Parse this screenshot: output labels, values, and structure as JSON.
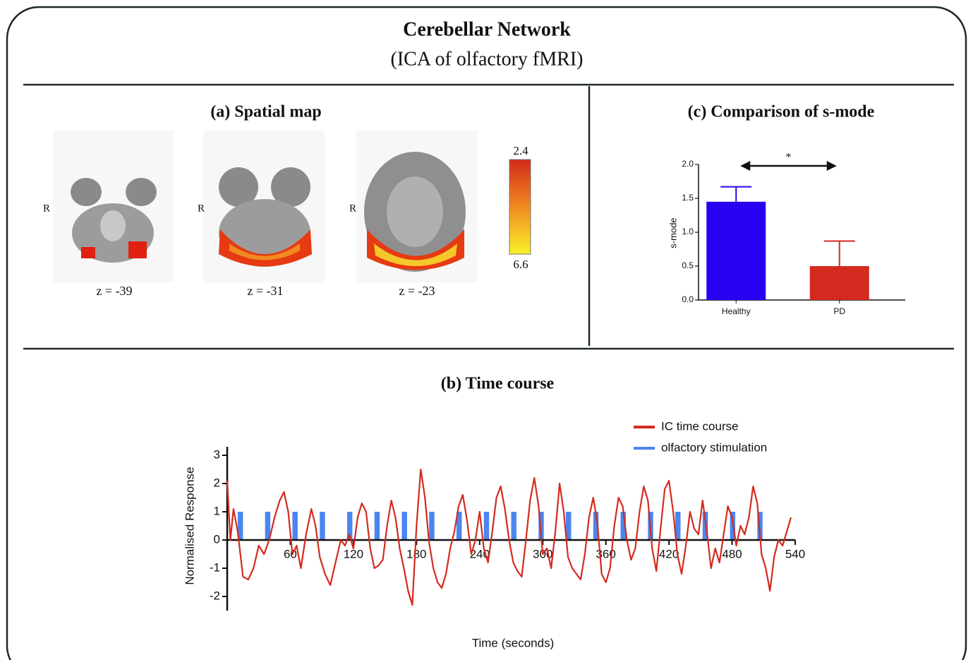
{
  "header": {
    "title": "Cerebellar Network",
    "subtitle": "(ICA of olfactory fMRI)"
  },
  "spatial_map": {
    "title": "(a) Spatial map",
    "slices": [
      {
        "side": "R",
        "label": "z = -39"
      },
      {
        "side": "R",
        "label": "z = -31"
      },
      {
        "side": "R",
        "label": "z = -23"
      }
    ],
    "colorbar": {
      "top": 2.4,
      "bottom": 6.6
    }
  },
  "chart_data": [
    {
      "type": "bar",
      "title": "(c) Comparison of s-mode",
      "y_label": "s-mode",
      "annotation": "*",
      "categories": [
        "Healthy",
        "PD"
      ],
      "values": [
        1.45,
        0.5
      ],
      "errors": [
        0.22,
        0.37
      ],
      "colors": [
        "#2a00f0",
        "#d42a1f"
      ],
      "ylim": [
        0,
        2.0
      ],
      "yticks": [
        {
          "value": 0,
          "label": "0.0"
        },
        0.5,
        {
          "value": 1,
          "label": "1.0"
        },
        1.5,
        {
          "value": 2,
          "label": "2.0"
        }
      ]
    },
    {
      "type": "line",
      "title": "(b) Time course",
      "x_label": "Time (seconds)",
      "y_label": "Normalised Response",
      "xlim": [
        0,
        540
      ],
      "ylim": [
        -2.5,
        3.3
      ],
      "xticks": [
        60,
        120,
        180,
        240,
        300,
        360,
        420,
        480,
        540
      ],
      "yticks": [
        -2,
        -1,
        0,
        1,
        2,
        3
      ],
      "series": [
        {
          "name": "IC time course",
          "color": "#d42a1f",
          "x": [
            0,
            3,
            6,
            10,
            15,
            20,
            25,
            30,
            35,
            40,
            45,
            50,
            54,
            58,
            62,
            66,
            70,
            75,
            80,
            84,
            88,
            93,
            98,
            103,
            108,
            112,
            116,
            120,
            124,
            128,
            132,
            136,
            140,
            144,
            148,
            152,
            156,
            160,
            164,
            168,
            172,
            176,
            180,
            184,
            188,
            192,
            196,
            200,
            204,
            208,
            212,
            216,
            220,
            224,
            228,
            232,
            236,
            240,
            244,
            248,
            252,
            256,
            260,
            264,
            268,
            272,
            276,
            280,
            284,
            288,
            292,
            296,
            300,
            304,
            308,
            312,
            316,
            320,
            324,
            328,
            332,
            336,
            340,
            344,
            348,
            352,
            356,
            360,
            364,
            368,
            372,
            376,
            380,
            384,
            388,
            392,
            396,
            400,
            404,
            408,
            412,
            416,
            420,
            424,
            428,
            432,
            436,
            440,
            444,
            448,
            452,
            456,
            460,
            464,
            468,
            472,
            476,
            480,
            484,
            488,
            492,
            496,
            500,
            504,
            508,
            512,
            516,
            520,
            524,
            528,
            532,
            536
          ],
          "values": [
            2.1,
            0.0,
            1.1,
            0.3,
            -1.3,
            -1.4,
            -1.0,
            -0.2,
            -0.5,
            0.0,
            0.8,
            1.4,
            1.7,
            1.0,
            -0.5,
            -0.2,
            -1.0,
            0.2,
            1.1,
            0.5,
            -0.6,
            -1.2,
            -1.6,
            -0.8,
            0.0,
            -0.2,
            0.2,
            -0.3,
            0.8,
            1.3,
            1.0,
            -0.3,
            -1.0,
            -0.9,
            -0.7,
            0.5,
            1.4,
            0.8,
            -0.3,
            -1.0,
            -1.8,
            -2.3,
            0.5,
            2.5,
            1.5,
            -0.1,
            -1.0,
            -1.5,
            -1.7,
            -1.2,
            -0.3,
            0.3,
            1.2,
            1.6,
            0.7,
            -0.5,
            0.0,
            1.0,
            -0.3,
            -0.8,
            0.3,
            1.5,
            1.9,
            1.1,
            0.0,
            -0.8,
            -1.1,
            -1.3,
            0.0,
            1.4,
            2.2,
            1.2,
            -0.5,
            -0.3,
            -1.0,
            0.3,
            2.0,
            1.0,
            -0.6,
            -1.0,
            -1.2,
            -1.4,
            -0.5,
            0.8,
            1.5,
            0.6,
            -1.2,
            -1.5,
            -1.0,
            0.5,
            1.5,
            1.2,
            0.0,
            -0.7,
            -0.3,
            1.0,
            1.9,
            1.4,
            -0.3,
            -1.1,
            0.4,
            1.8,
            2.1,
            1.0,
            -0.5,
            -1.2,
            -0.2,
            1.0,
            0.4,
            0.2,
            1.4,
            0.3,
            -1.0,
            -0.3,
            -0.8,
            0.2,
            1.2,
            0.8,
            -0.2,
            0.5,
            0.2,
            0.8,
            1.9,
            1.3,
            -0.5,
            -1.0,
            -1.8,
            -0.6,
            0.0,
            -0.2,
            0.3,
            0.8
          ]
        },
        {
          "name": "olfactory stimulation",
          "color": "#4a86f0",
          "x": [
            10,
            36,
            62,
            88,
            114,
            140,
            166,
            192,
            218,
            244,
            270,
            296,
            322,
            348,
            374,
            400,
            426,
            452,
            478,
            504
          ],
          "x_end": [
            15,
            41,
            67,
            93,
            119,
            145,
            171,
            197,
            223,
            249,
            275,
            301,
            327,
            353,
            379,
            405,
            431,
            457,
            483,
            509
          ],
          "values": [
            1,
            1,
            1,
            1,
            1,
            1,
            1,
            1,
            1,
            1,
            1,
            1,
            1,
            1,
            1,
            1,
            1,
            1,
            1,
            1
          ]
        }
      ]
    }
  ]
}
